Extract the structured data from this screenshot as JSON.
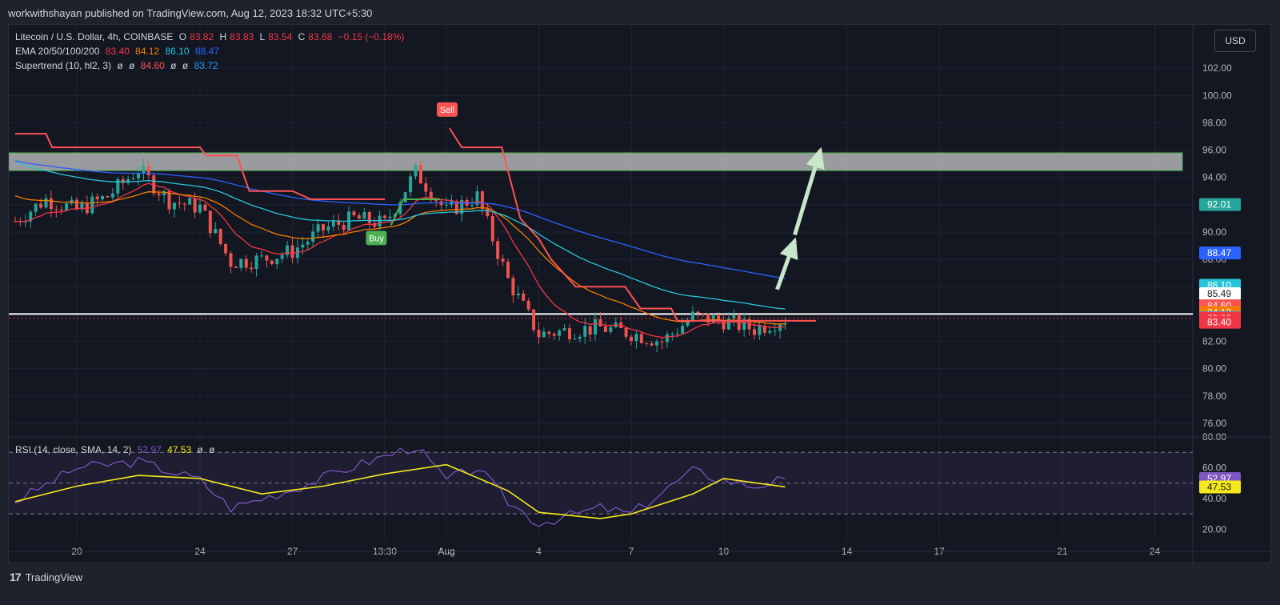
{
  "header": {
    "published": "workwithshayan published on TradingView.com, Aug 12, 2023 18:32 UTC+5:30"
  },
  "currency_button": "USD",
  "legend": {
    "symbol": "Litecoin / U.S. Dollar, 4h, COINBASE",
    "o_label": "O",
    "o_val": "83.82",
    "h_label": "H",
    "h_val": "83.83",
    "l_label": "L",
    "l_val": "83.54",
    "c_label": "C",
    "c_val": "83.68",
    "change": "−0.15 (−0.18%)",
    "ema_label": "EMA 20/50/100/200",
    "ema20": "83.40",
    "ema50": "84.12",
    "ema100": "86.10",
    "ema200": "88.47",
    "st_label": "Supertrend (10, hl2, 3)",
    "st_sym": "ø",
    "st_down": "84.60",
    "st_up": "83.72",
    "rsi_label": "RSI (14, close, SMA, 14, 2)",
    "rsi_val": "52.97",
    "rsi_sma": "47.53"
  },
  "footer": {
    "logo": "17",
    "brand": "TradingView"
  },
  "colors": {
    "bg": "#131722",
    "grid": "#1f2330",
    "up": "#26a69a",
    "down": "#ef5350",
    "ema20": "#f23645",
    "ema50": "#f57c00",
    "ema100": "#26c6da",
    "ema200": "#2962ff",
    "st_down": "#ff5252",
    "rsi": "#7e57c2",
    "rsi_sma": "#f5e81b",
    "arrow": "#c8e6c9"
  },
  "chart_data": [
    {
      "type": "candlestick",
      "x_ticks": [
        "20",
        "24",
        "27",
        "13:30",
        "Aug",
        "4",
        "7",
        "10",
        "14",
        "17",
        "21",
        "24"
      ],
      "y_ticks": [
        "76.00",
        "78.00",
        "80.00",
        "82.00",
        "84.00",
        "86.00",
        "88.00",
        "90.00",
        "92.00",
        "94.00",
        "96.00",
        "98.00",
        "100.00",
        "102.00"
      ],
      "ylim": [
        75,
        104
      ],
      "resistance_zone": [
        94.5,
        95.8
      ],
      "support_level": 84.0,
      "last_price": 83.68,
      "price_labels": [
        {
          "text": "92.01",
          "value": 92.01,
          "color": "#26a69a"
        },
        {
          "text": "88.47",
          "value": 88.47,
          "color": "#2962ff"
        },
        {
          "text": "86.10",
          "value": 86.1,
          "color": "#26c6da"
        },
        {
          "text": "85.49",
          "value": 85.49,
          "color": "#ffffff"
        },
        {
          "text": "84.60",
          "value": 84.6,
          "color": "#ff5252"
        },
        {
          "text": "84.12",
          "value": 84.12,
          "color": "#f57c00"
        },
        {
          "text": "83.72",
          "value": 83.72,
          "color": "#2196f3"
        },
        {
          "text": "83.68",
          "value": 83.68,
          "color": "#f23645"
        },
        {
          "text": "83.40",
          "value": 83.4,
          "color": "#f23645"
        }
      ],
      "signals": [
        {
          "text": "Buy",
          "time": "Jul 30",
          "value": 90.5
        },
        {
          "text": "Sell",
          "time": "Aug 1",
          "value": 97.8
        }
      ],
      "projection_target": 96.0,
      "close_path": [
        {
          "t": "Jul 18",
          "v": 90.8
        },
        {
          "t": "Jul 19",
          "v": 92.4
        },
        {
          "t": "Jul 20",
          "v": 91.6
        },
        {
          "t": "Jul 21",
          "v": 92.6
        },
        {
          "t": "Jul 22",
          "v": 94.6
        },
        {
          "t": "Jul 23",
          "v": 92.3
        },
        {
          "t": "Jul 24",
          "v": 91.8
        },
        {
          "t": "Jul 25",
          "v": 87.8
        },
        {
          "t": "Jul 26",
          "v": 88.0
        },
        {
          "t": "Jul 27",
          "v": 88.6
        },
        {
          "t": "Jul 28",
          "v": 90.2
        },
        {
          "t": "Jul 29",
          "v": 91.0
        },
        {
          "t": "Jul 30",
          "v": 90.6
        },
        {
          "t": "Jul 31",
          "v": 94.4
        },
        {
          "t": "Aug 1",
          "v": 91.5
        },
        {
          "t": "Aug 2",
          "v": 92.6
        },
        {
          "t": "Aug 3",
          "v": 86.5
        },
        {
          "t": "Aug 4",
          "v": 82.5
        },
        {
          "t": "Aug 5",
          "v": 82.8
        },
        {
          "t": "Aug 6",
          "v": 83.0
        },
        {
          "t": "Aug 7",
          "v": 82.6
        },
        {
          "t": "Aug 8",
          "v": 82.0
        },
        {
          "t": "Aug 9",
          "v": 83.8
        },
        {
          "t": "Aug 10",
          "v": 83.5
        },
        {
          "t": "Aug 11",
          "v": 82.9
        },
        {
          "t": "Aug 12",
          "v": 83.68
        }
      ]
    },
    {
      "type": "line",
      "name": "RSI",
      "y_ticks": [
        "20.00",
        "40.00",
        "60.00",
        "80.00"
      ],
      "ylim": [
        15,
        80
      ],
      "bands": [
        30,
        50,
        70
      ],
      "rsi": [
        {
          "t": "Jul 18",
          "v": 38
        },
        {
          "t": "Jul 20",
          "v": 60
        },
        {
          "t": "Jul 22",
          "v": 64
        },
        {
          "t": "Jul 24",
          "v": 52
        },
        {
          "t": "Jul 25",
          "v": 34
        },
        {
          "t": "Jul 27",
          "v": 46
        },
        {
          "t": "Jul 29",
          "v": 61
        },
        {
          "t": "Jul 31",
          "v": 74
        },
        {
          "t": "Aug 1",
          "v": 52
        },
        {
          "t": "Aug 2",
          "v": 60
        },
        {
          "t": "Aug 3",
          "v": 38
        },
        {
          "t": "Aug 4",
          "v": 24
        },
        {
          "t": "Aug 6",
          "v": 34
        },
        {
          "t": "Aug 7",
          "v": 30
        },
        {
          "t": "Aug 9",
          "v": 58
        },
        {
          "t": "Aug 10",
          "v": 52
        },
        {
          "t": "Aug 11",
          "v": 48
        },
        {
          "t": "Aug 12",
          "v": 52.97
        }
      ],
      "sma": [
        {
          "t": "Jul 18",
          "v": 38
        },
        {
          "t": "Jul 20",
          "v": 48
        },
        {
          "t": "Jul 22",
          "v": 55
        },
        {
          "t": "Jul 24",
          "v": 53
        },
        {
          "t": "Jul 26",
          "v": 43
        },
        {
          "t": "Jul 28",
          "v": 48
        },
        {
          "t": "Jul 30",
          "v": 56
        },
        {
          "t": "Aug 1",
          "v": 62
        },
        {
          "t": "Aug 3",
          "v": 45
        },
        {
          "t": "Aug 4",
          "v": 31
        },
        {
          "t": "Aug 6",
          "v": 27
        },
        {
          "t": "Aug 7",
          "v": 30
        },
        {
          "t": "Aug 9",
          "v": 43
        },
        {
          "t": "Aug 10",
          "v": 53
        },
        {
          "t": "Aug 12",
          "v": 47.53
        }
      ],
      "labels": [
        {
          "text": "52.97",
          "value": 52.97,
          "color": "#7e57c2"
        },
        {
          "text": "47.53",
          "value": 47.53,
          "color": "#f5e81b"
        }
      ]
    }
  ]
}
